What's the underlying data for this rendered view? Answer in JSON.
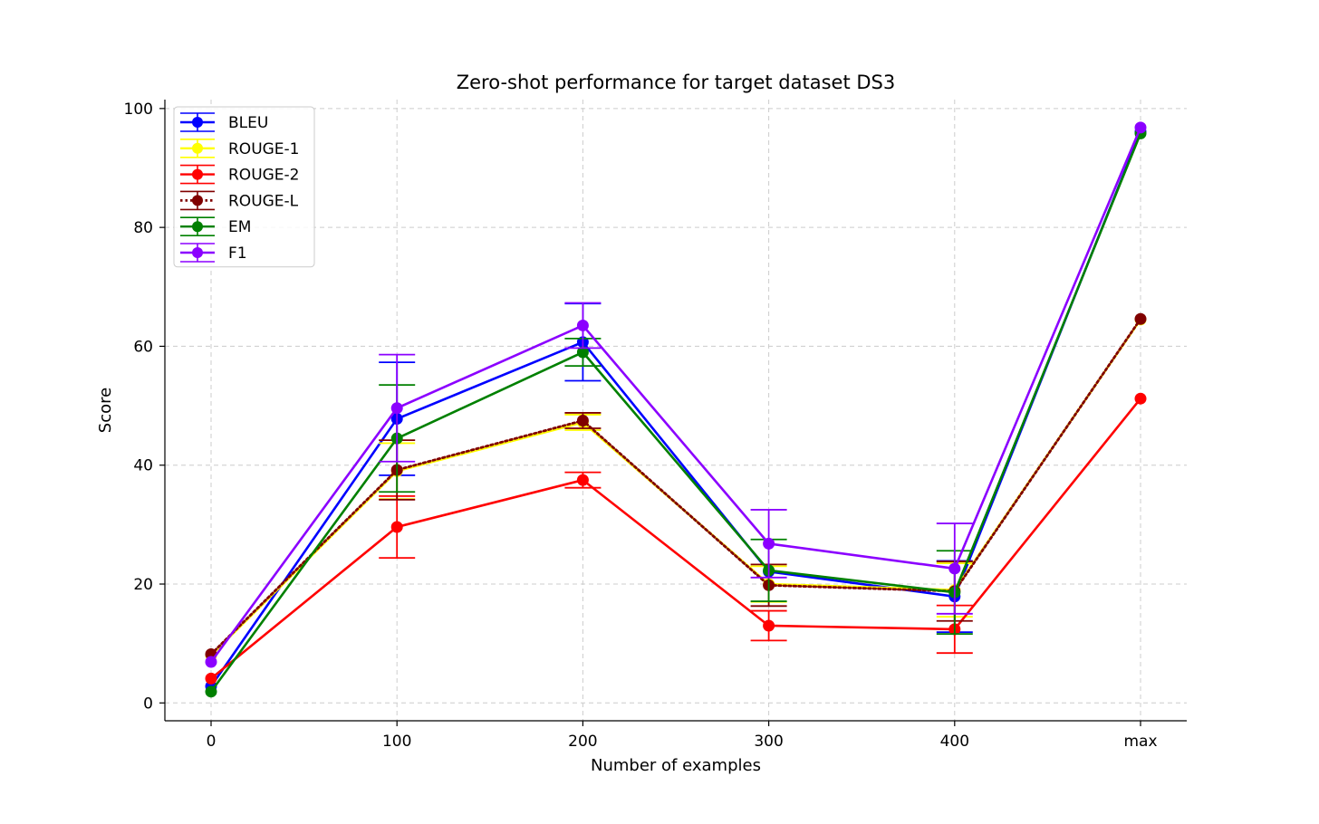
{
  "chart_data": {
    "type": "line",
    "title": "Zero-shot performance for target dataset DS3",
    "xlabel": "Number of examples",
    "ylabel": "Score",
    "categories": [
      "0",
      "100",
      "200",
      "300",
      "400",
      "max"
    ],
    "ylim": [
      -3,
      101.5
    ],
    "yticks": [
      0,
      20,
      40,
      60,
      80,
      100
    ],
    "grid": true,
    "legend_position": "top-left",
    "series": [
      {
        "name": "BLEU",
        "color": "#0000ff",
        "line_style": "solid",
        "marker": "circle",
        "values": [
          2.8,
          47.8,
          60.7,
          22.1,
          17.9,
          96.1
        ],
        "errors": [
          null,
          9.5,
          6.5,
          null,
          6.0,
          null
        ]
      },
      {
        "name": "ROUGE-1",
        "color": "#ffff00",
        "line_style": "solid",
        "marker": "circle",
        "values": [
          8.0,
          39.0,
          47.2,
          20.0,
          19.0,
          64.5
        ],
        "errors": [
          null,
          4.7,
          1.3,
          3.0,
          4.5,
          null
        ]
      },
      {
        "name": "ROUGE-2",
        "color": "#ff0000",
        "line_style": "solid",
        "marker": "circle",
        "values": [
          4.1,
          29.6,
          37.5,
          13.0,
          12.4,
          51.2
        ],
        "errors": [
          null,
          5.2,
          1.3,
          2.5,
          4.0,
          null
        ]
      },
      {
        "name": "ROUGE-L",
        "color": "#800000",
        "line_style": "dotted",
        "marker": "circle",
        "values": [
          8.2,
          39.2,
          47.5,
          19.8,
          18.8,
          64.6
        ],
        "errors": [
          null,
          5.0,
          1.3,
          3.5,
          5.0,
          null
        ]
      },
      {
        "name": "EM",
        "color": "#008000",
        "line_style": "solid",
        "marker": "circle",
        "values": [
          1.9,
          44.5,
          59.0,
          22.3,
          18.6,
          95.8
        ],
        "errors": [
          null,
          9.0,
          2.3,
          5.2,
          7.0,
          null
        ]
      },
      {
        "name": "F1",
        "color": "#8b00ff",
        "line_style": "solid",
        "marker": "circle",
        "values": [
          6.9,
          49.6,
          63.5,
          26.8,
          22.6,
          96.8
        ],
        "errors": [
          null,
          9.0,
          3.8,
          5.7,
          7.6,
          null
        ]
      }
    ]
  }
}
